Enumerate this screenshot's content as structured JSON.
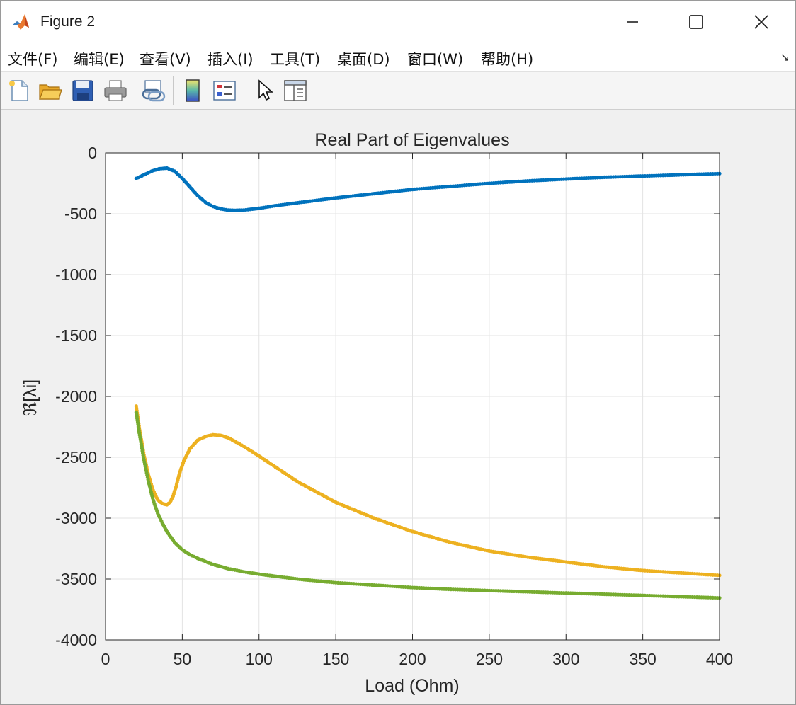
{
  "window": {
    "title": "Figure 2"
  },
  "menu": {
    "items": [
      "文件(F)",
      "编辑(E)",
      "查看(V)",
      "插入(I)",
      "工具(T)",
      "桌面(D)",
      "窗口(W)",
      "帮助(H)"
    ],
    "more_glyph": "↘"
  },
  "toolbar": {
    "buttons": [
      "new-figure-icon",
      "open-file-icon",
      "save-icon",
      "print-icon",
      "link-plot-icon",
      "colorbar-icon",
      "legend-icon",
      "pointer-icon",
      "property-editor-icon"
    ]
  },
  "chart_data": {
    "type": "scatter",
    "title": "Real Part of Eigenvalues",
    "xlabel": "Load (Ohm)",
    "ylabel": "ℜ[λi]",
    "xlim": [
      0,
      400
    ],
    "ylim": [
      -4000,
      0
    ],
    "xticks": [
      "0",
      "50",
      "100",
      "150",
      "200",
      "250",
      "300",
      "350",
      "400"
    ],
    "yticks": [
      "0",
      "-500",
      "-1000",
      "-1500",
      "-2000",
      "-2500",
      "-3000",
      "-3500",
      "-4000"
    ],
    "grid": true,
    "series": [
      {
        "color": "#0072bd",
        "points": [
          [
            20,
            -210
          ],
          [
            25,
            -180
          ],
          [
            30,
            -150
          ],
          [
            35,
            -130
          ],
          [
            40,
            -125
          ],
          [
            45,
            -150
          ],
          [
            50,
            -210
          ],
          [
            55,
            -280
          ],
          [
            60,
            -350
          ],
          [
            65,
            -405
          ],
          [
            70,
            -440
          ],
          [
            75,
            -460
          ],
          [
            80,
            -470
          ],
          [
            85,
            -472
          ],
          [
            90,
            -470
          ],
          [
            100,
            -455
          ],
          [
            110,
            -435
          ],
          [
            125,
            -410
          ],
          [
            150,
            -370
          ],
          [
            175,
            -335
          ],
          [
            200,
            -300
          ],
          [
            225,
            -275
          ],
          [
            250,
            -250
          ],
          [
            275,
            -230
          ],
          [
            300,
            -215
          ],
          [
            325,
            -200
          ],
          [
            350,
            -190
          ],
          [
            375,
            -180
          ],
          [
            400,
            -170
          ]
        ]
      },
      {
        "color": "#edb120",
        "points": [
          [
            20,
            -2080
          ],
          [
            22,
            -2260
          ],
          [
            25,
            -2480
          ],
          [
            28,
            -2650
          ],
          [
            31,
            -2770
          ],
          [
            34,
            -2850
          ],
          [
            37,
            -2880
          ],
          [
            40,
            -2890
          ],
          [
            42,
            -2870
          ],
          [
            44,
            -2820
          ],
          [
            46,
            -2740
          ],
          [
            48,
            -2640
          ],
          [
            51,
            -2530
          ],
          [
            55,
            -2430
          ],
          [
            60,
            -2360
          ],
          [
            65,
            -2330
          ],
          [
            70,
            -2315
          ],
          [
            75,
            -2320
          ],
          [
            80,
            -2340
          ],
          [
            90,
            -2410
          ],
          [
            100,
            -2490
          ],
          [
            125,
            -2700
          ],
          [
            150,
            -2870
          ],
          [
            175,
            -3000
          ],
          [
            200,
            -3110
          ],
          [
            225,
            -3200
          ],
          [
            250,
            -3270
          ],
          [
            275,
            -3320
          ],
          [
            300,
            -3360
          ],
          [
            325,
            -3400
          ],
          [
            350,
            -3430
          ],
          [
            375,
            -3450
          ],
          [
            400,
            -3470
          ]
        ]
      },
      {
        "color": "#77ac30",
        "points": [
          [
            20,
            -2130
          ],
          [
            22,
            -2300
          ],
          [
            25,
            -2520
          ],
          [
            28,
            -2700
          ],
          [
            31,
            -2850
          ],
          [
            34,
            -2960
          ],
          [
            37,
            -3040
          ],
          [
            40,
            -3110
          ],
          [
            45,
            -3200
          ],
          [
            50,
            -3260
          ],
          [
            55,
            -3300
          ],
          [
            60,
            -3330
          ],
          [
            70,
            -3380
          ],
          [
            80,
            -3415
          ],
          [
            90,
            -3440
          ],
          [
            100,
            -3460
          ],
          [
            125,
            -3500
          ],
          [
            150,
            -3530
          ],
          [
            175,
            -3550
          ],
          [
            200,
            -3570
          ],
          [
            225,
            -3585
          ],
          [
            250,
            -3595
          ],
          [
            275,
            -3605
          ],
          [
            300,
            -3615
          ],
          [
            325,
            -3625
          ],
          [
            350,
            -3635
          ],
          [
            375,
            -3645
          ],
          [
            400,
            -3655
          ]
        ]
      }
    ]
  }
}
